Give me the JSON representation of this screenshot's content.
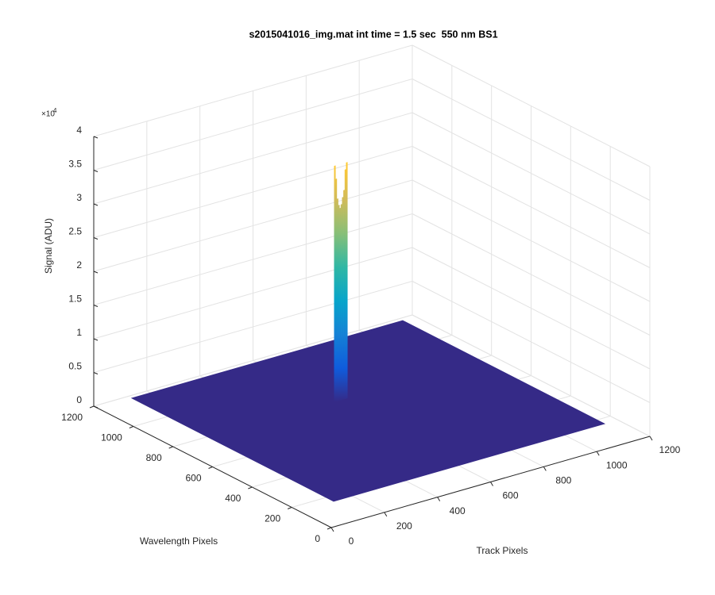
{
  "chart_data": {
    "type": "surface3d",
    "title": "s2015041016_img.mat int time = 1.5 sec  550 nm BS1",
    "xlabel": "Track Pixels",
    "ylabel": "Wavelength Pixels",
    "zlabel": "Signal (ADU)",
    "z_exponent_base": "×10",
    "z_exponent_power": "4",
    "xlim": [
      0,
      1200
    ],
    "ylim": [
      0,
      1200
    ],
    "zlim": [
      0,
      40000
    ],
    "xticks": [
      0,
      200,
      400,
      600,
      800,
      1000,
      1200
    ],
    "yticks": [
      0,
      200,
      400,
      600,
      800,
      1000,
      1200
    ],
    "zticks": [
      0,
      {
        "value": 5000,
        "label": "0.5"
      },
      {
        "value": 10000,
        "label": "1"
      },
      {
        "value": 15000,
        "label": "1.5"
      },
      {
        "value": 20000,
        "label": "2"
      },
      {
        "value": 25000,
        "label": "2.5"
      },
      {
        "value": 30000,
        "label": "3"
      },
      {
        "value": 35000,
        "label": "3.5"
      },
      {
        "value": 40000,
        "label": "4"
      }
    ],
    "grid": true,
    "colormap": [
      "#352a87",
      "#0f5cdd",
      "#1481d6",
      "#06a4ca",
      "#2eb7a4",
      "#87bf77",
      "#d1bb59",
      "#fec832",
      "#f9fb0e"
    ],
    "floor": {
      "x": [
        128,
        1152
      ],
      "y": [
        160,
        1184
      ],
      "value": 0
    },
    "spike": {
      "wavelength_pixel": 790,
      "x": [
        600,
        605,
        610,
        615,
        620,
        625,
        630,
        635,
        640,
        645
      ],
      "values": [
        35000,
        33000,
        30000,
        29000,
        28500,
        29000,
        30000,
        31000,
        34000,
        35000
      ]
    }
  }
}
